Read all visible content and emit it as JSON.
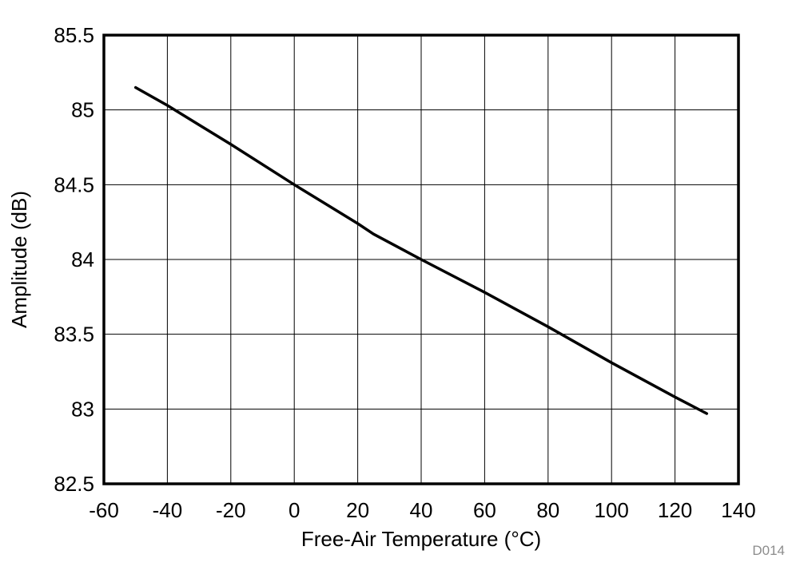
{
  "figure_id": "D014",
  "chart_data": {
    "type": "line",
    "title": "",
    "xlabel": "Free-Air Temperature (°C)",
    "ylabel": "Amplitude (dB)",
    "xlim": [
      -60,
      140
    ],
    "ylim": [
      82.5,
      85.5
    ],
    "x_ticks": [
      -60,
      -40,
      -20,
      0,
      20,
      40,
      60,
      80,
      100,
      120,
      140
    ],
    "y_ticks": [
      82.5,
      83,
      83.5,
      84,
      84.5,
      85,
      85.5
    ],
    "grid": true,
    "legend": "none",
    "series": [
      {
        "color": "#000000",
        "x": [
          -50,
          -40,
          -20,
          0,
          20,
          25,
          40,
          60,
          80,
          100,
          120,
          130
        ],
        "y": [
          85.15,
          85.03,
          84.77,
          84.5,
          84.24,
          84.17,
          84.0,
          83.78,
          83.55,
          83.31,
          83.08,
          82.97
        ]
      }
    ]
  }
}
